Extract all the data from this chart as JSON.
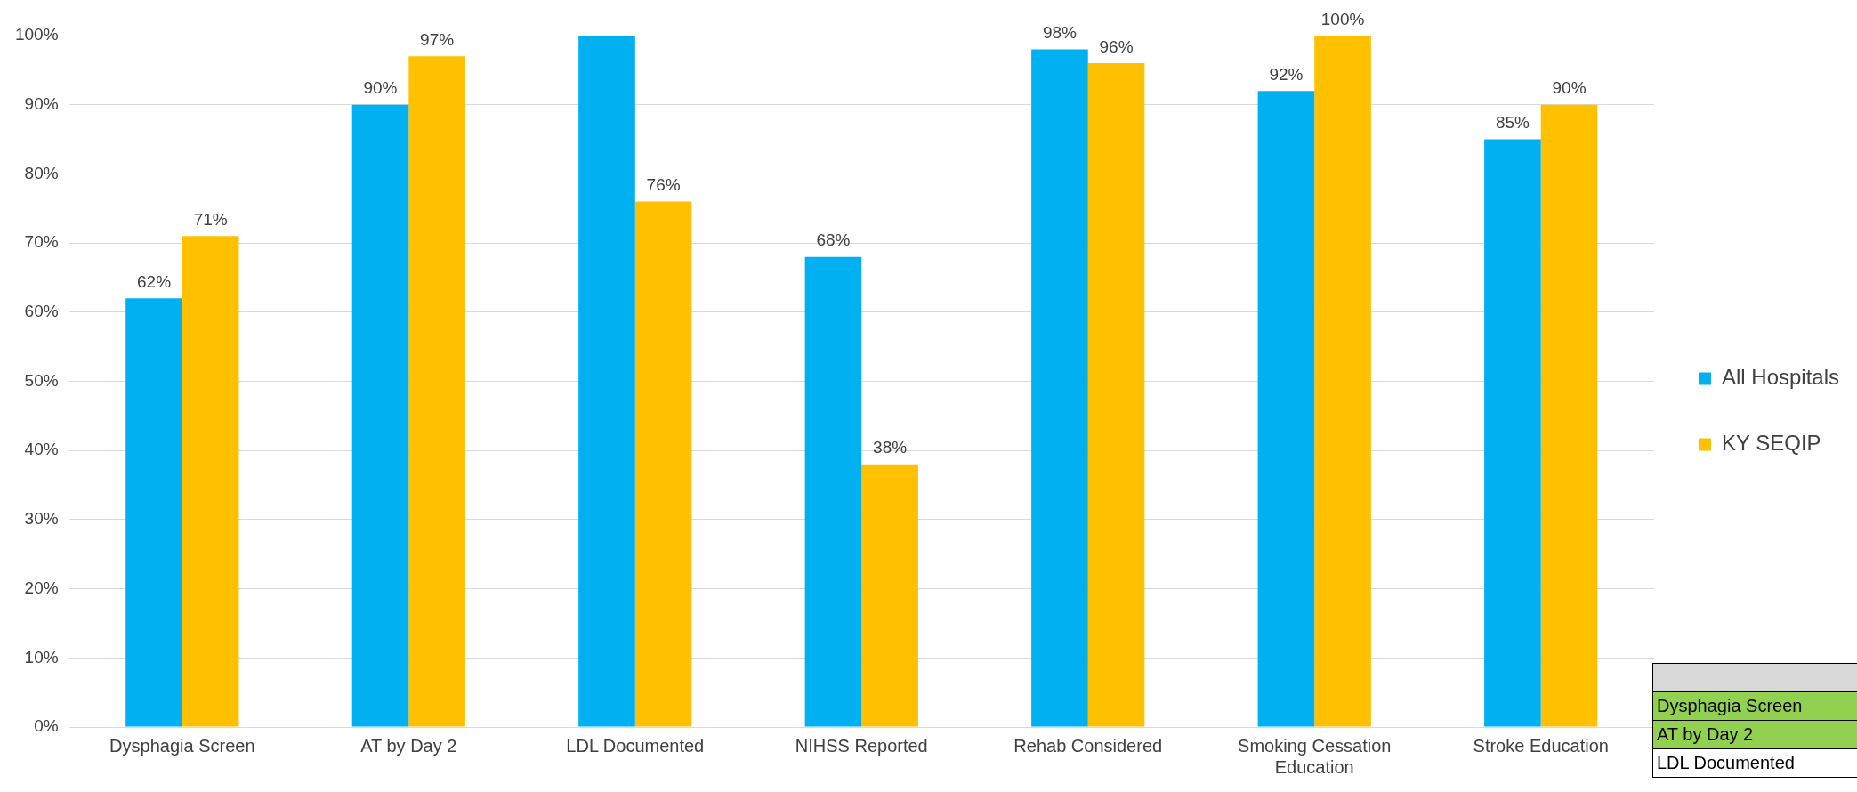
{
  "chart_data": {
    "type": "bar",
    "categories": [
      "Dysphagia Screen",
      "AT by Day 2",
      "LDL Documented",
      "NIHSS Reported",
      "Rehab Considered",
      "Smoking Cessation Education",
      "Stroke Education"
    ],
    "series": [
      {
        "name": "All Hospitals",
        "color": "#00b0f0",
        "values": [
          62,
          90,
          100,
          68,
          98,
          92,
          85
        ],
        "value_labels": [
          "62%",
          "90%",
          null,
          "68%",
          "98%",
          "92%",
          "85%"
        ]
      },
      {
        "name": "KY SEQIP",
        "color": "#ffc000",
        "values": [
          71,
          97,
          76,
          38,
          96,
          100,
          90
        ],
        "value_labels": [
          "71%",
          "97%",
          "76%",
          "38%",
          "96%",
          "100%",
          "90%"
        ]
      }
    ],
    "ylim": [
      0,
      100
    ],
    "yticks": [
      {
        "value": 0,
        "label": "0%"
      },
      {
        "value": 10,
        "label": "10%"
      },
      {
        "value": 20,
        "label": "20%"
      },
      {
        "value": 30,
        "label": "30%"
      },
      {
        "value": 40,
        "label": "40%"
      },
      {
        "value": 50,
        "label": "50%"
      },
      {
        "value": 60,
        "label": "60%"
      },
      {
        "value": 70,
        "label": "70%"
      },
      {
        "value": 80,
        "label": "80%"
      },
      {
        "value": 90,
        "label": "90%"
      },
      {
        "value": 100,
        "label": "100%"
      }
    ],
    "grid": "y",
    "legend": "right",
    "annotations": [
      "Dysphagia Screen",
      "AT by Day 2",
      "LDL Documented"
    ]
  }
}
